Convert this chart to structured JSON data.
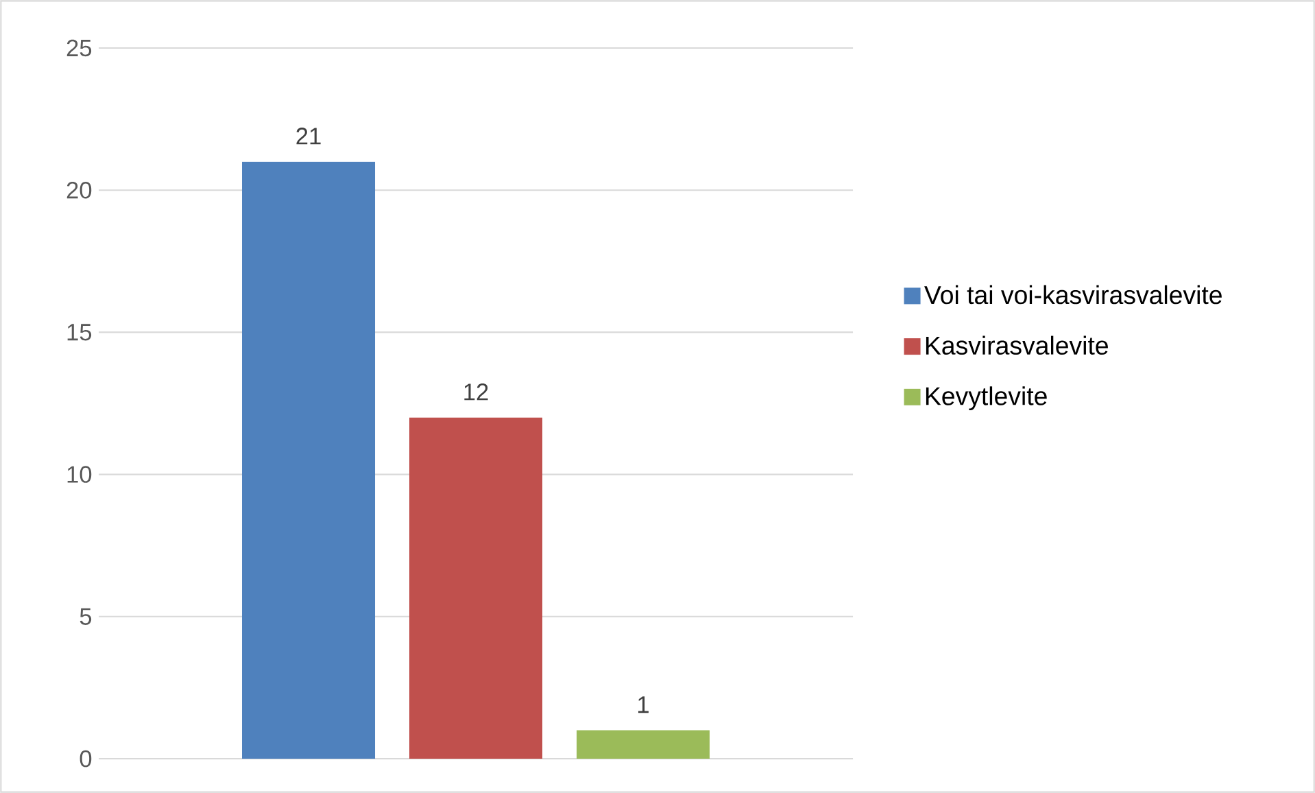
{
  "chart_data": {
    "type": "bar",
    "categories": [
      null
    ],
    "series": [
      {
        "name": "Voi tai voi-kasvirasvalevite",
        "color": "#4f81bd",
        "values": [
          21
        ]
      },
      {
        "name": "Kasvirasvalevite",
        "color": "#c0504d",
        "values": [
          12
        ]
      },
      {
        "name": "Kevytlevite",
        "color": "#9bbb59",
        "values": [
          1
        ]
      }
    ],
    "ylim": [
      0,
      25
    ],
    "yticks": [
      0,
      5,
      10,
      15,
      20,
      25
    ],
    "grid": "y",
    "legend": "right",
    "data_labels": true
  }
}
